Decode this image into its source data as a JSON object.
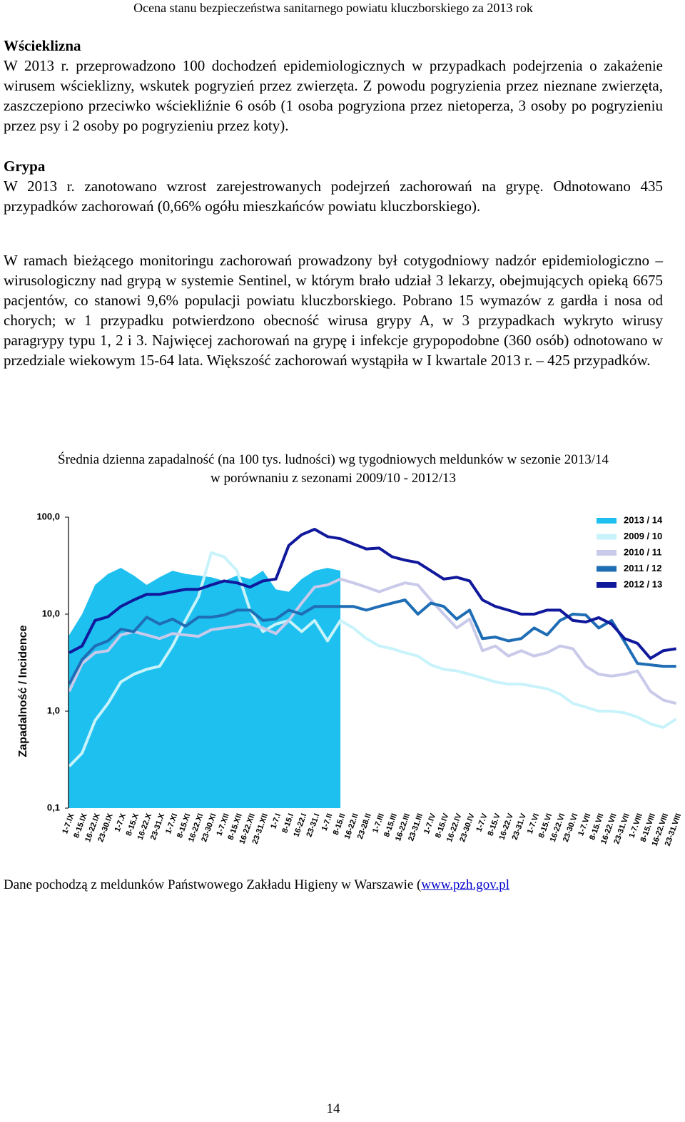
{
  "header": "Ocena stanu  bezpieczeństwa sanitarnego powiatu kluczborskiego za 2013 rok",
  "sections": [
    {
      "heading": "Wścieklizna",
      "paragraphs": [
        "W 2013 r. przeprowadzono 100 dochodzeń epidemiologicznych w przypadkach podejrzenia o zakażenie wirusem wścieklizny, wskutek pogryzień przez zwierzęta. Z powodu pogryzienia przez nieznane zwierzęta, zaszczepiono przeciwko wściekliźnie 6 osób (1 osoba pogryziona przez nietoperza, 3 osoby po pogryzieniu przez psy  i 2 osoby po pogryzieniu przez koty)."
      ]
    },
    {
      "heading": "Grypa",
      "paragraphs": [
        "W 2013 r. zanotowano wzrost zarejestrowanych podejrzeń zachorowań na grypę. Odnotowano 435 przypadków zachorowań (0,66% ogółu mieszkańców powiatu kluczborskiego).",
        "W ramach bieżącego monitoringu zachorowań prowadzony był cotygodniowy nadzór epidemiologiczno – wirusologiczny nad grypą w systemie Sentinel, w którym brało  udział 3 lekarzy, obejmujących opieką 6675 pacjentów, co stanowi 9,6% populacji powiatu kluczborskiego. Pobrano 15 wymazów z gardła i nosa od chorych; w 1 przypadku potwierdzono obecność wirusa grypy A, w 3 przypadkach wykryto wirusy paragrypy typu 1, 2 i 3. Najwięcej zachorowań  na grypę i infekcje grypopodobne (360 osób) odnotowano w przedziale wiekowym 15-64 lata. Większość zachorowań wystąpiła w I kwartale 2013 r. – 425 przypadków."
      ]
    }
  ],
  "chart_data": {
    "type": "line",
    "title": "Średnia dzienna zapadalność (na 100 tys. ludności) wg tygodniowych meldunków w sezonie 2013/14",
    "subtitle": "w porównaniu z sezonami 2009/10 - 2012/13",
    "ylabel": "Zapadalność  /  Incidence",
    "log_scale": true,
    "grid": false,
    "legend": "upper right",
    "ylim": [
      0.1,
      100
    ],
    "yticks": [
      {
        "value": 100,
        "label": "100,0"
      },
      {
        "value": 10,
        "label": "10,0"
      },
      {
        "value": 1,
        "label": "1,0"
      },
      {
        "value": 0.1,
        "label": "0,1"
      }
    ],
    "categories": [
      "1-7.IX",
      "8-15.IX",
      "16-22.IX",
      "23-30.IX",
      "1-7.X",
      "8-15.X",
      "16-22.X",
      "23-31.X",
      "1-7.XI",
      "8-15.XI",
      "16-22.XI",
      "23-30.XI",
      "1-7.XII",
      "8-15.XII",
      "16-22.XII",
      "23-31.XII",
      "1-7.I",
      "8-15.I",
      "16-22.I",
      "23-31.I",
      "1-7.II",
      "8-15.II",
      "16-22.II",
      "23-28.II",
      "1-7.III",
      "8-15.III",
      "16-22.III",
      "23-31.III",
      "1-7.IV",
      "8-15.IV",
      "16-22.IV",
      "23-30.IV",
      "1-7.V",
      "8-15.V",
      "16-22.V",
      "23-31.V",
      "1-7.VI",
      "8-15.VI",
      "16-22.VI",
      "23-30.VI",
      "1-7.VII",
      "8-15.VII",
      "16-22.VII",
      "23-31.VII",
      "1-7.VIII",
      "8-15.VIII",
      "16-22.VIII",
      "23-31.VIII"
    ],
    "series": [
      {
        "name": "2013 / 14",
        "kind": "area",
        "color": "#1ec0ef",
        "values": [
          6.1,
          10,
          20,
          26,
          30,
          25,
          20,
          24,
          28,
          26,
          25,
          24,
          22,
          25,
          23,
          28,
          18,
          17,
          23,
          28,
          30,
          28,
          null,
          null,
          null,
          null,
          null,
          null,
          null,
          null,
          null,
          null,
          null,
          null,
          null,
          null,
          null,
          null,
          null,
          null,
          null,
          null,
          null,
          null,
          null,
          null,
          null,
          null
        ]
      },
      {
        "name": "2009 / 10",
        "kind": "line",
        "color": "#c8f3fb",
        "values": [
          0.27,
          0.37,
          0.8,
          1.2,
          2.0,
          2.4,
          2.7,
          2.9,
          4.7,
          8.6,
          15,
          43,
          39,
          28,
          11,
          6.6,
          7.9,
          8.6,
          6.6,
          8.6,
          5.3,
          8.6,
          7.2,
          5.6,
          4.7,
          4.4,
          4.0,
          3.7,
          3.0,
          2.7,
          2.6,
          2.4,
          2.2,
          2.0,
          1.9,
          1.9,
          1.8,
          1.7,
          1.5,
          1.2,
          1.1,
          1.0,
          1.0,
          0.96,
          0.87,
          0.74,
          0.68,
          0.83
        ]
      },
      {
        "name": "2010 / 11",
        "kind": "line",
        "color": "#c9c9ea",
        "values": [
          1.6,
          3.1,
          4.0,
          4.2,
          6.1,
          6.6,
          6.1,
          5.6,
          6.3,
          6.1,
          5.9,
          6.9,
          7.2,
          7.5,
          7.9,
          7.2,
          6.3,
          8.6,
          13,
          19,
          20,
          23,
          21,
          19,
          17,
          19,
          21,
          20,
          14,
          10,
          7.2,
          8.9,
          4.2,
          4.7,
          3.7,
          4.2,
          3.7,
          4.0,
          4.7,
          4.4,
          2.9,
          2.4,
          2.3,
          2.4,
          2.6,
          1.6,
          1.3,
          1.2
        ]
      },
      {
        "name": "2011 / 12",
        "kind": "line",
        "color": "#1f6db5",
        "values": [
          1.9,
          3.4,
          4.7,
          5.3,
          7.0,
          6.6,
          9.3,
          7.9,
          8.9,
          7.5,
          9.3,
          9.3,
          9.8,
          11,
          11,
          8.6,
          8.9,
          11,
          10,
          12,
          12,
          12,
          12,
          11,
          12,
          13,
          14,
          10,
          13,
          12,
          8.9,
          11,
          5.6,
          5.8,
          5.3,
          5.6,
          7.2,
          6.1,
          8.6,
          10,
          9.8,
          7.2,
          8.6,
          5.2,
          3.1,
          3.0,
          2.9,
          2.9
        ]
      },
      {
        "name": "2012 / 13",
        "kind": "line",
        "color": "#10189c",
        "values": [
          4.0,
          4.7,
          8.6,
          9.4,
          12,
          14,
          16,
          16,
          17,
          18,
          18,
          20,
          22,
          21,
          19,
          22,
          23,
          51,
          66,
          75,
          63,
          60,
          53,
          47,
          48,
          39,
          36,
          34,
          28,
          23,
          24,
          22,
          14,
          12,
          11,
          10,
          10,
          11,
          11,
          8.6,
          8.3,
          9.2,
          7.9,
          5.6,
          5.0,
          3.5,
          4.2,
          4.4
        ]
      }
    ]
  },
  "source": {
    "text": "Dane pochodzą z meldunków Państwowego Zakładu Higieny w Warszawie (",
    "link": "www.pzh.gov.pl"
  },
  "page_number": 14
}
